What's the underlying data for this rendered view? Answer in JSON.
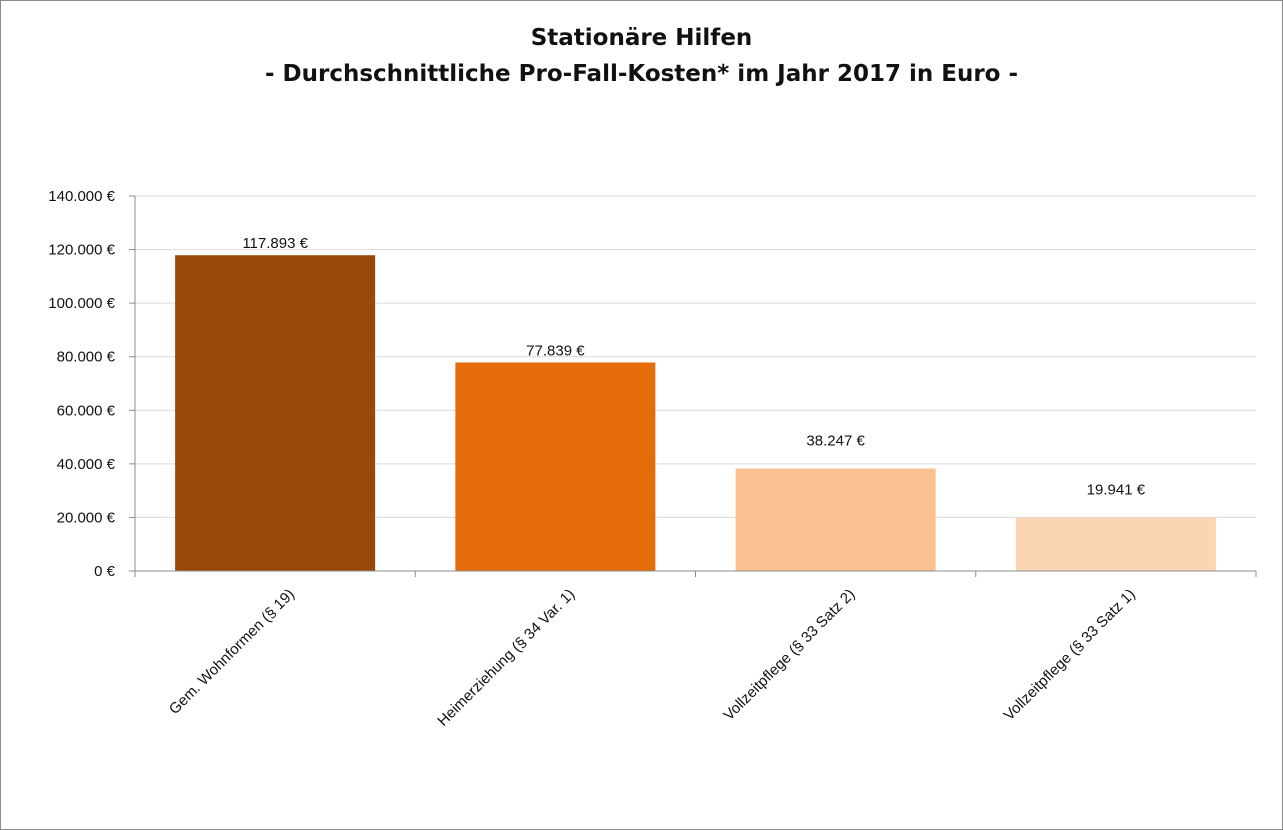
{
  "chart_data": {
    "type": "bar",
    "title": "Stationäre Hilfen",
    "subtitle": "- Durchschnittliche Pro-Fall-Kosten* im Jahr 2017 in Euro -",
    "xlabel": "",
    "ylabel": "",
    "categories": [
      "Gem. Wohnformen (§ 19)",
      "Heimerziehung (§ 34 Var. 1)",
      "Vollzeitpflege (§ 33 Satz 2)",
      "Vollzeitpflege (§ 33 Satz 1)"
    ],
    "values": [
      117893,
      77839,
      38247,
      19941
    ],
    "data_labels": [
      "117.893 €",
      "77.839 €",
      "38.247 €",
      "19.941 €"
    ],
    "colors": [
      "#984807",
      "#e46c0a",
      "#fac090",
      "#fcd5b5"
    ],
    "ylim": [
      0,
      140000
    ],
    "yticks": [
      0,
      20000,
      40000,
      60000,
      80000,
      100000,
      120000,
      140000
    ],
    "ytick_labels": [
      "0 €",
      "20.000 €",
      "40.000 €",
      "60.000 €",
      "80.000 €",
      "100.000 €",
      "120.000 €",
      "140.000 €"
    ],
    "grid": true,
    "legend": "none"
  }
}
